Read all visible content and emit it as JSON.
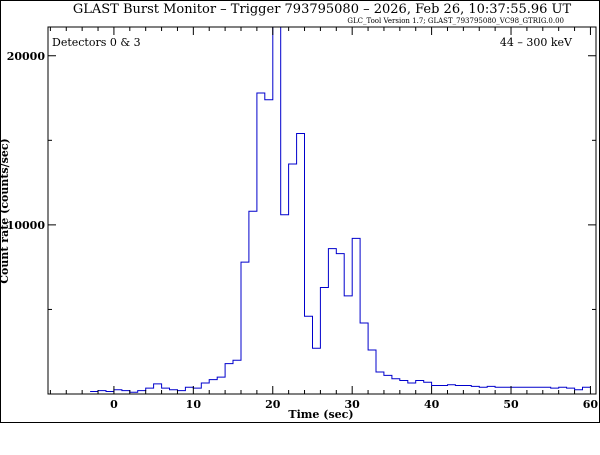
{
  "chart_data": {
    "type": "line",
    "title": "GLAST Burst Monitor  –  Trigger 793795080  –  2026, Feb 26, 10:37:55.96 UT",
    "subtitle": "GLC_Tool Version 1.7; GLAST_793795080_VC98_GTRIG.0.00",
    "detectors_label": "Detectors 0 & 3",
    "energy_label": "44 – 300 keV",
    "xlabel": "Time (sec)",
    "ylabel": "Count rate (counts/sec)",
    "xlim": [
      -8.3,
      60.7
    ],
    "ylim": [
      0,
      21700
    ],
    "x_ticks": [
      0,
      10,
      20,
      30,
      40,
      50,
      60
    ],
    "y_ticks": [
      10000,
      20000
    ],
    "line_color": "#0000cc",
    "series": [
      {
        "edges": [
          -3,
          -2,
          -1,
          0,
          1,
          2,
          3,
          4,
          5,
          6,
          7,
          8,
          9,
          10,
          11,
          12,
          13,
          14,
          15,
          16,
          17,
          18,
          19,
          20,
          21,
          22,
          23,
          24,
          25,
          26,
          27,
          28,
          29,
          30,
          31,
          32,
          33,
          34,
          35,
          36,
          37,
          38,
          39,
          40,
          41,
          42,
          43,
          44,
          45,
          46,
          47,
          48,
          49,
          50,
          51,
          52,
          53,
          54,
          55,
          56,
          57,
          58,
          59,
          60
        ],
        "values": [
          150,
          200,
          150,
          250,
          200,
          100,
          200,
          350,
          600,
          350,
          250,
          200,
          400,
          350,
          650,
          850,
          1000,
          1800,
          2000,
          7800,
          10800,
          17800,
          17400,
          21700,
          10600,
          13600,
          15400,
          4600,
          2700,
          6300,
          8600,
          8300,
          5800,
          9200,
          4200,
          2600,
          1300,
          1100,
          900,
          800,
          650,
          800,
          700,
          500,
          500,
          550,
          500,
          500,
          450,
          400,
          450,
          400,
          400,
          400,
          400,
          400,
          400,
          400,
          350,
          400,
          350,
          250,
          400
        ]
      }
    ]
  }
}
